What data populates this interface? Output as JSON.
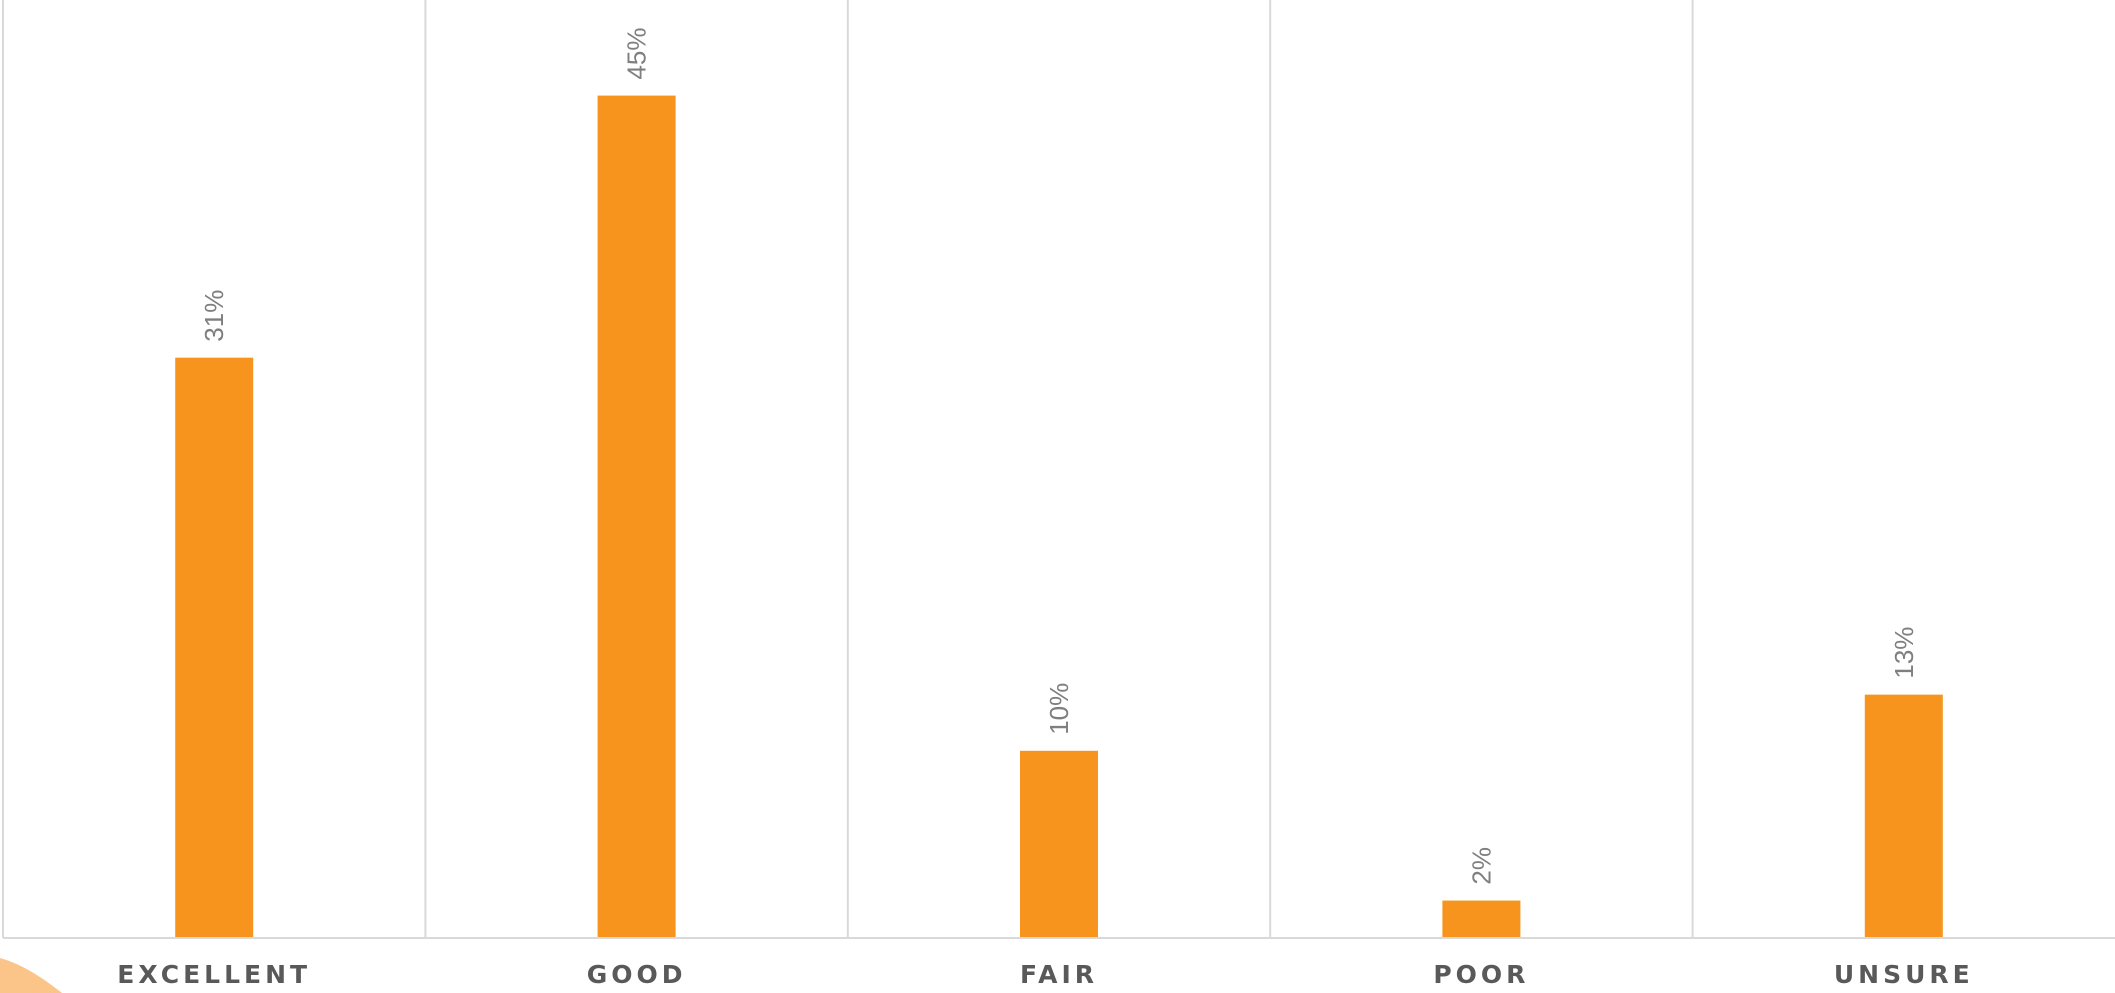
{
  "chart_data": {
    "type": "bar",
    "categories": [
      "EXCELLENT",
      "GOOD",
      "FAIR",
      "POOR",
      "UNSURE"
    ],
    "values": [
      31,
      45,
      10,
      2,
      13
    ],
    "data_labels": [
      "31%",
      "45%",
      "10%",
      "2%",
      "13%"
    ],
    "ylim": [
      0,
      50
    ],
    "bar_color": "#F7941D",
    "grid": "vertical category separators",
    "legend": "none"
  }
}
